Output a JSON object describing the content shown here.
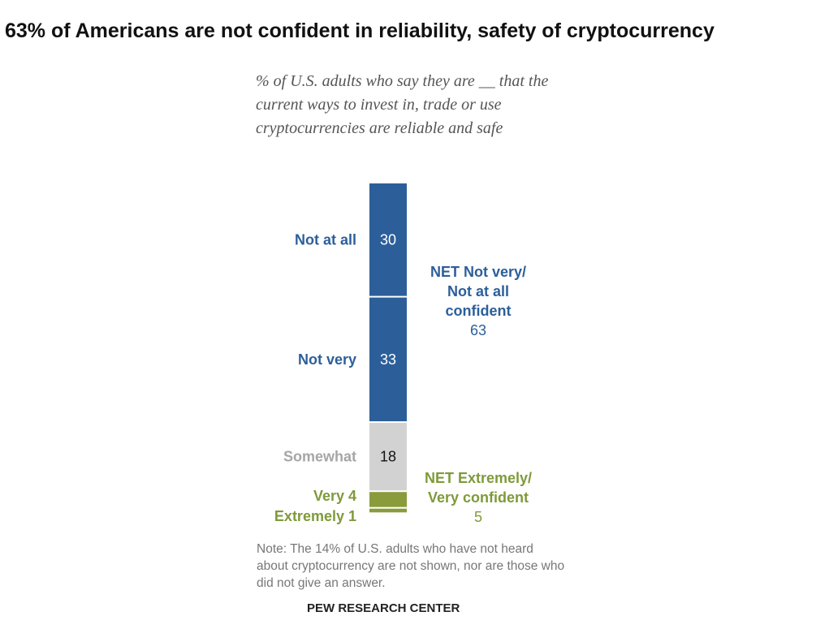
{
  "title": "63% of Americans are not confident in reliability, safety of cryptocurrency",
  "subtitle": "% of U.S. adults who say they are __ that the current ways to invest in, trade or use cryptocurrencies are reliable and safe",
  "note": "Note: The 14% of U.S. adults who have not heard about cryptocurrency are not shown, nor are those who did not give an answer.",
  "source": "PEW RESEARCH CENTER",
  "chart_data": {
    "type": "bar",
    "stacked": true,
    "categories": [
      "Not at all",
      "Not very",
      "Somewhat",
      "Very",
      "Extremely"
    ],
    "values": [
      30,
      33,
      18,
      4,
      1
    ],
    "value_labels": [
      "30",
      "33",
      "18",
      "4",
      "1"
    ],
    "colors": [
      "#2c5f9a",
      "#2c5f9a",
      "#d2d2d2",
      "#8a9b3c",
      "#8a9b3c"
    ],
    "label_colors": [
      "#2c5f9a",
      "#2c5f9a",
      "#a6a6a6",
      "#7f9a3a",
      "#7f9a3a"
    ],
    "nets": [
      {
        "label": "NET Not very/ Not at all confident",
        "lines": [
          "NET Not very/",
          "Not at all",
          "confident"
        ],
        "value": "63",
        "color": "#2c5f9a"
      },
      {
        "label": "NET Extremely/ Very confident",
        "lines": [
          "NET Extremely/",
          "Very confident"
        ],
        "value": "5",
        "color": "#7f9a3a"
      }
    ]
  }
}
